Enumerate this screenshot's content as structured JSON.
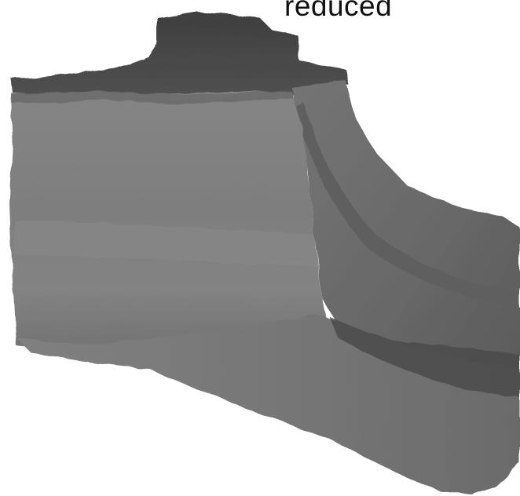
{
  "caption": {
    "text": "reduced"
  },
  "render": {
    "subject": "shaded-3d-mesh-model",
    "palette": {
      "background": "#ffffff",
      "top_dark": "#444444",
      "front_face": "#7d7d7d",
      "side_face": "#6e6e6e",
      "shadow": "#4e4e4e"
    }
  }
}
